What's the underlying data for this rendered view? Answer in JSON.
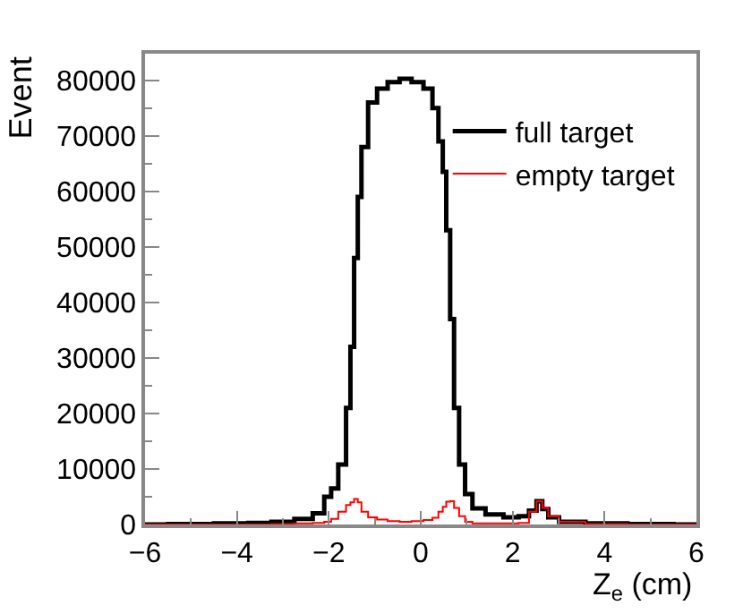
{
  "chart_data": {
    "type": "step",
    "xlabel": "Z$_{e}$ (cm)",
    "ylabel": "Event",
    "x": [
      -6,
      -5,
      -4,
      -3.5,
      -3,
      -2.5,
      -2.2,
      -2.0,
      -1.9,
      -1.69,
      -1.56,
      -1.5,
      -1.4,
      -1.34,
      -1.24,
      -1.05,
      -0.85,
      -0.59,
      -0.33,
      -0.07,
      0.19,
      0.32,
      0.45,
      0.51,
      0.6,
      0.68,
      0.77,
      0.9,
      1.03,
      1.22,
      1.6,
      2.0,
      2.26,
      2.45,
      2.59,
      2.7,
      2.85,
      3.17,
      4,
      5,
      6
    ],
    "series": [
      {
        "name": "full target",
        "color": "#000000",
        "values": [
          0,
          100,
          200,
          300,
          500,
          1000,
          2000,
          5000,
          6500,
          10800,
          21000,
          32000,
          48000,
          59000,
          68000,
          76000,
          78500,
          79700,
          80300,
          79700,
          78500,
          75000,
          69000,
          63500,
          53000,
          37000,
          21000,
          10800,
          5500,
          2900,
          1800,
          1300,
          1500,
          2500,
          4200,
          2800,
          1300,
          500,
          200,
          100,
          0
        ]
      },
      {
        "name": "empty target",
        "color": "#ff0000",
        "values": [
          0,
          0,
          0,
          0,
          100,
          200,
          300,
          500,
          1000,
          2300,
          3500,
          4000,
          4600,
          4000,
          2300,
          1300,
          900,
          600,
          500,
          600,
          800,
          1200,
          2300,
          3200,
          4100,
          4200,
          3000,
          1500,
          500,
          200,
          200,
          200,
          300,
          2300,
          4200,
          3000,
          1500,
          500,
          100,
          0,
          0
        ]
      }
    ],
    "xlim": [
      -6,
      6
    ],
    "ylim": [
      0,
      84800
    ],
    "xticks": [
      -6,
      -4,
      -2,
      0,
      2,
      4,
      6
    ],
    "yticks": [
      0,
      10000,
      20000,
      30000,
      40000,
      50000,
      60000,
      70000,
      80000
    ],
    "legend": "top right",
    "line_style": "solid",
    "marker": "none"
  }
}
